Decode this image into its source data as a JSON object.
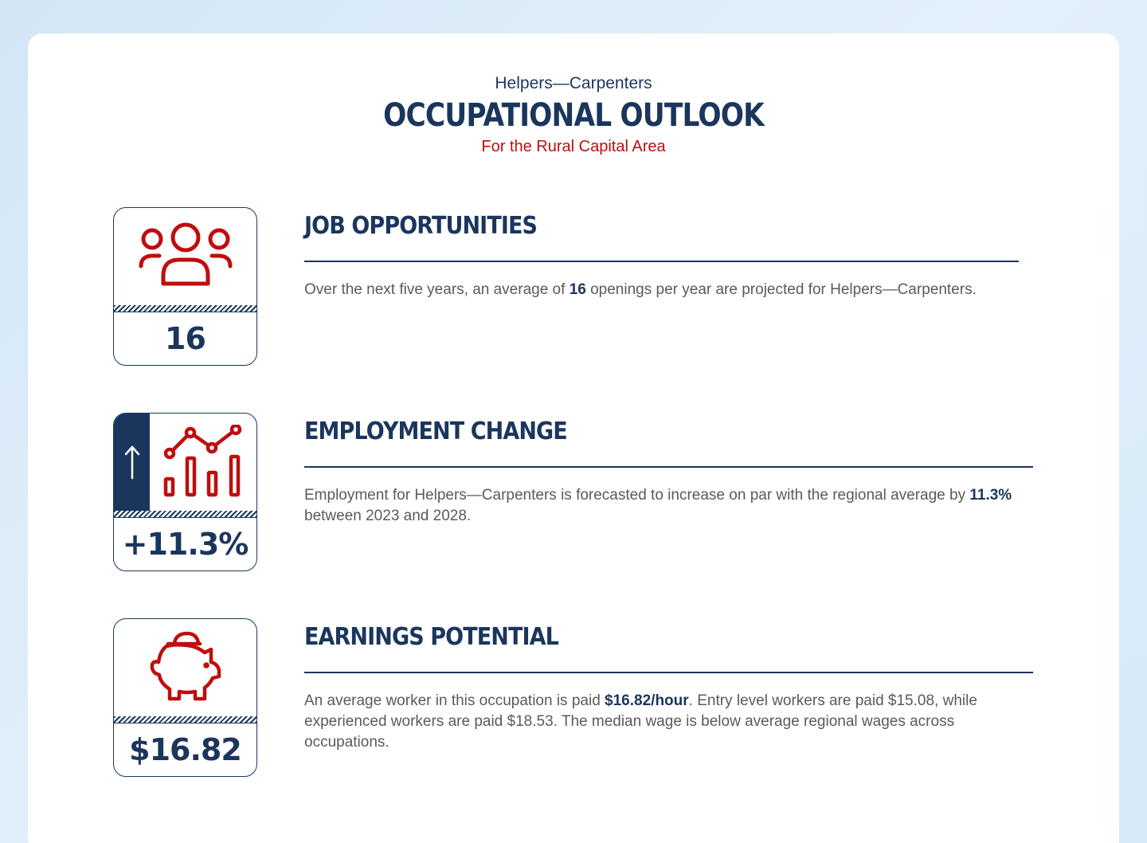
{
  "header": {
    "occupation": "Helpers—Carpenters",
    "title": "OCCUPATIONAL OUTLOOK",
    "area": "For the Rural Capital Area"
  },
  "colors": {
    "navy": "#1b365d",
    "red": "#c00d0d",
    "text_gray": "#5a5a5a",
    "background": "#dceaf7"
  },
  "sections": [
    {
      "icon": "people-group-icon",
      "tile_value": "16",
      "heading": "JOB OPPORTUNITIES",
      "text_before": "Over the next five years, an average of ",
      "text_bold": "16",
      "text_after": " openings per year are projected for Helpers—Carpenters."
    },
    {
      "icon": "bar-line-chart-icon",
      "arrow_icon": "arrow-up-icon",
      "tile_value": "+11.3%",
      "heading": "EMPLOYMENT CHANGE",
      "text_before": "Employment for Helpers—Carpenters is forecasted to increase on par with the regional average by ",
      "text_bold": "11.3%",
      "text_after": " between 2023 and 2028."
    },
    {
      "icon": "piggy-bank-icon",
      "tile_value": "$16.82",
      "heading": "EARNINGS POTENTIAL",
      "text_before": "An average worker in this occupation is paid ",
      "text_bold": "$16.82/hour",
      "text_after": ". Entry level workers are paid $15.08, while experienced workers are paid $18.53. The median wage is below average regional wages across occupations."
    }
  ]
}
